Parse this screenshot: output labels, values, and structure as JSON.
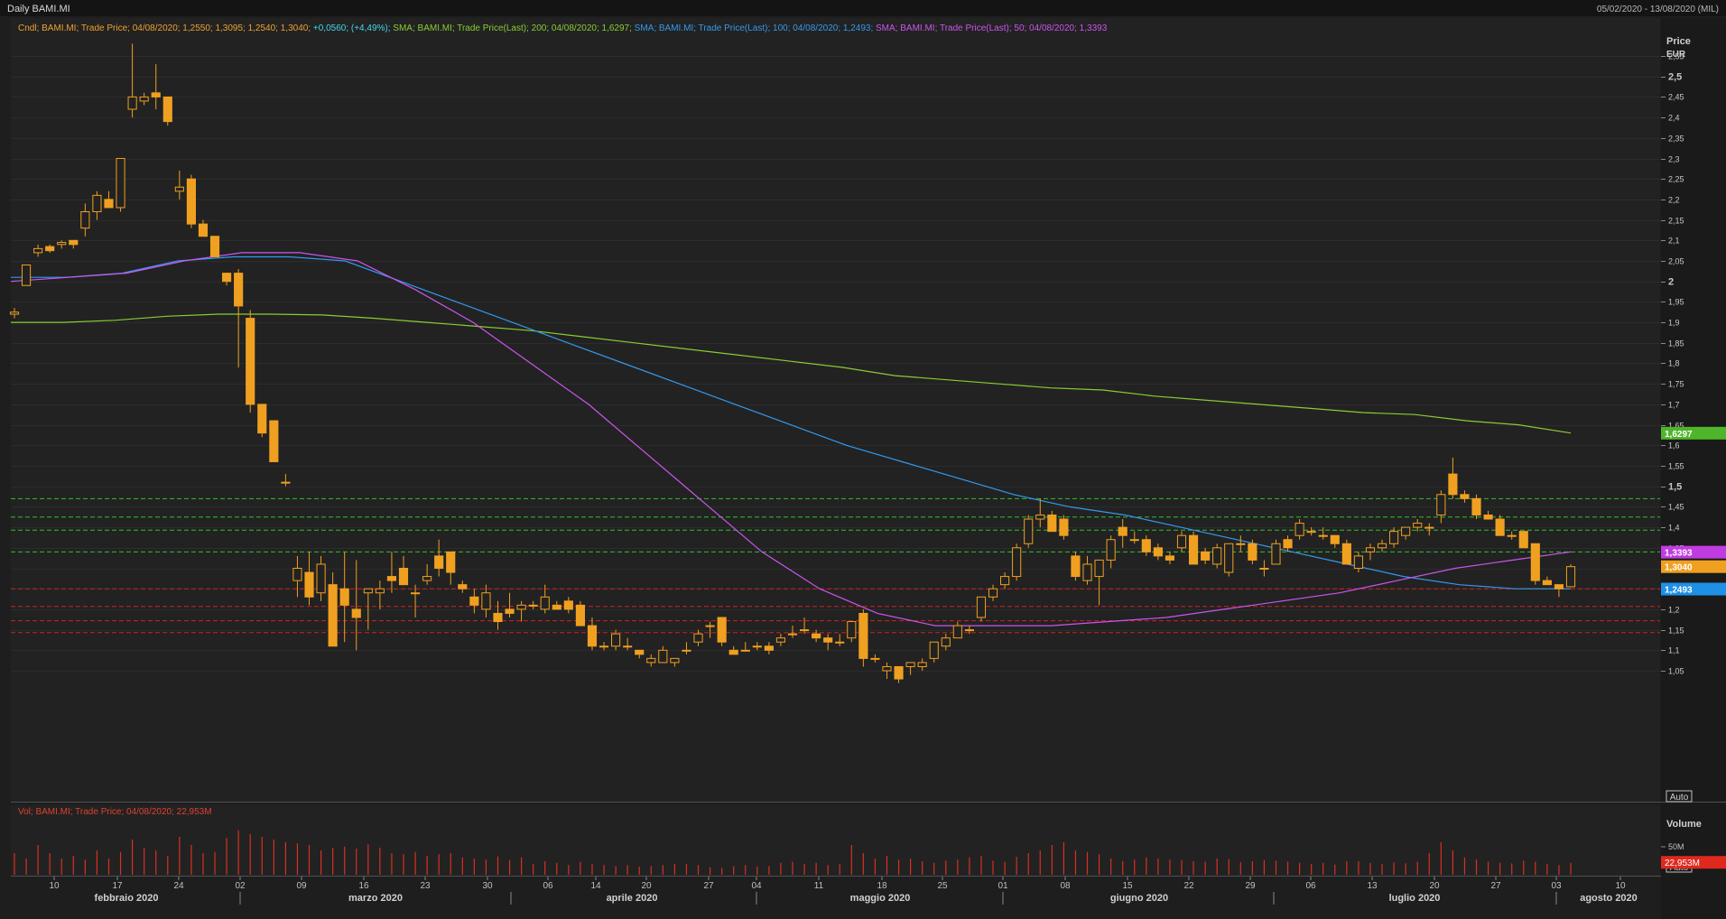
{
  "window": {
    "title": "Daily BAMI.MI",
    "date_range": "05/02/2020 - 13/08/2020 (MIL)"
  },
  "legend": {
    "cndl": {
      "text": "Cndl; BAMI.MI; Trade Price; 04/08/2020; 1,2550; 1,3095; 1,2540; 1,3040;",
      "color": "#f0a030"
    },
    "change": {
      "text": " +0,0560; (+4,49%);",
      "color": "#40d8e8"
    },
    "sma200": {
      "text": " SMA; BAMI.MI; Trade Price(Last);  200;  04/08/2020; 1,6297;",
      "color": "#88cc33"
    },
    "sma100": {
      "text": " SMA; BAMI.MI; Trade Price(Last);  100;  04/08/2020; 1,2493;",
      "color": "#3399ee"
    },
    "sma50": {
      "text": " SMA; BAMI.MI; Trade Price(Last);  50;  04/08/2020; 1,3393",
      "color": "#cc55ee"
    }
  },
  "volume_legend": {
    "text": "Vol; BAMI.MI; Trade Price; 04/08/2020; 22,953M",
    "color": "#e04030"
  },
  "price_axis": {
    "title": "Price",
    "unit": "EUR",
    "ticks": [
      "2,55",
      "2,5",
      "2,45",
      "2,4",
      "2,35",
      "2,3",
      "2,25",
      "2,2",
      "2,15",
      "2,1",
      "2,05",
      "2",
      "1,95",
      "1,9",
      "1,85",
      "1,8",
      "1,75",
      "1,7",
      "1,65",
      "1,6",
      "1,55",
      "1,5",
      "1,45",
      "1,4",
      "1,35",
      "1,3",
      "1,25",
      "1,2",
      "1,15",
      "1,1",
      "1,05"
    ],
    "bold_ticks": [
      "2,5",
      "2",
      "1,5"
    ],
    "auto_label": "Auto"
  },
  "volume_axis": {
    "title": "Volume",
    "tick": "50M",
    "auto_label": "Auto"
  },
  "price_tags": [
    {
      "label": "1,6297",
      "value": 1.6297,
      "color": "#4fb52a"
    },
    {
      "label": "1,3393",
      "value": 1.3393,
      "color": "#c03ce0"
    },
    {
      "label": "1,3040",
      "value": 1.304,
      "color": "#f0a020"
    },
    {
      "label": "1,2493",
      "value": 1.2493,
      "color": "#1e90e6"
    }
  ],
  "volume_tag": {
    "label": "22,953M",
    "value": 22.953,
    "color": "#e0281e"
  },
  "x_axis": {
    "day_labels": [
      "10",
      "17",
      "24",
      "02",
      "09",
      "16",
      "23",
      "30",
      "06",
      "14",
      "20",
      "27",
      "04",
      "11",
      "18",
      "25",
      "01",
      "08",
      "15",
      "22",
      "29",
      "06",
      "13",
      "20",
      "27",
      "03",
      "10"
    ],
    "month_labels": [
      "febbraio 2020",
      "marzo 2020",
      "aprile 2020",
      "maggio 2020",
      "giugno 2020",
      "luglio 2020",
      "agosto 2020"
    ]
  },
  "colors": {
    "background": "#1e1e1e",
    "grid": "#2c2c2c",
    "candle_up": "#f0a020",
    "support_green": "#2ec02e",
    "support_red": "#d02020",
    "volume_bar": "#d83020"
  },
  "chart_data": {
    "type": "candlestick",
    "symbol": "BAMI.MI",
    "ylim": [
      1.02,
      2.58
    ],
    "support_lines_green": [
      1.47,
      1.425,
      1.393,
      1.34
    ],
    "support_lines_red": [
      1.25,
      1.207,
      1.172,
      1.143
    ],
    "candles": [
      [
        1.92,
        1.935,
        1.91,
        1.925
      ],
      [
        1.99,
        2.04,
        1.99,
        2.04
      ],
      [
        2.07,
        2.09,
        2.06,
        2.08
      ],
      [
        2.085,
        2.09,
        2.07,
        2.075
      ],
      [
        2.09,
        2.1,
        2.08,
        2.095
      ],
      [
        2.1,
        2.1,
        2.08,
        2.09
      ],
      [
        2.13,
        2.19,
        2.11,
        2.17
      ],
      [
        2.17,
        2.22,
        2.15,
        2.21
      ],
      [
        2.2,
        2.22,
        2.18,
        2.18
      ],
      [
        2.18,
        2.3,
        2.17,
        2.3
      ],
      [
        2.42,
        2.58,
        2.4,
        2.45
      ],
      [
        2.44,
        2.46,
        2.43,
        2.45
      ],
      [
        2.46,
        2.53,
        2.42,
        2.45
      ],
      [
        2.45,
        2.45,
        2.38,
        2.39
      ],
      [
        2.22,
        2.27,
        2.2,
        2.23
      ],
      [
        2.25,
        2.26,
        2.13,
        2.14
      ],
      [
        2.14,
        2.15,
        2.11,
        2.11
      ],
      [
        2.11,
        2.11,
        2.07,
        2.06
      ],
      [
        2.02,
        2.02,
        1.99,
        2.0
      ],
      [
        2.02,
        2.03,
        1.79,
        1.94
      ],
      [
        1.91,
        1.93,
        1.68,
        1.7
      ],
      [
        1.7,
        1.7,
        1.62,
        1.63
      ],
      [
        1.66,
        1.66,
        1.56,
        1.56
      ],
      [
        1.51,
        1.53,
        1.5,
        1.51
      ],
      [
        1.27,
        1.33,
        1.23,
        1.3
      ],
      [
        1.29,
        1.34,
        1.21,
        1.23
      ],
      [
        1.24,
        1.33,
        1.22,
        1.31
      ],
      [
        1.26,
        1.29,
        1.11,
        1.11
      ],
      [
        1.25,
        1.34,
        1.12,
        1.21
      ],
      [
        1.2,
        1.32,
        1.1,
        1.18
      ],
      [
        1.24,
        1.25,
        1.15,
        1.25
      ],
      [
        1.24,
        1.27,
        1.2,
        1.25
      ],
      [
        1.28,
        1.34,
        1.24,
        1.27
      ],
      [
        1.3,
        1.33,
        1.26,
        1.26
      ],
      [
        1.24,
        1.26,
        1.18,
        1.24
      ],
      [
        1.27,
        1.31,
        1.26,
        1.28
      ],
      [
        1.33,
        1.37,
        1.28,
        1.3
      ],
      [
        1.34,
        1.34,
        1.26,
        1.29
      ],
      [
        1.26,
        1.27,
        1.24,
        1.25
      ],
      [
        1.23,
        1.25,
        1.19,
        1.21
      ],
      [
        1.2,
        1.26,
        1.18,
        1.24
      ],
      [
        1.19,
        1.22,
        1.15,
        1.17
      ],
      [
        1.2,
        1.24,
        1.18,
        1.19
      ],
      [
        1.2,
        1.22,
        1.17,
        1.21
      ],
      [
        1.21,
        1.22,
        1.2,
        1.21
      ],
      [
        1.2,
        1.26,
        1.19,
        1.23
      ],
      [
        1.21,
        1.22,
        1.2,
        1.2
      ],
      [
        1.22,
        1.23,
        1.19,
        1.2
      ],
      [
        1.21,
        1.22,
        1.16,
        1.16
      ],
      [
        1.16,
        1.18,
        1.1,
        1.11
      ],
      [
        1.11,
        1.12,
        1.1,
        1.11
      ],
      [
        1.11,
        1.15,
        1.1,
        1.14
      ],
      [
        1.11,
        1.13,
        1.1,
        1.11
      ],
      [
        1.1,
        1.1,
        1.08,
        1.09
      ],
      [
        1.07,
        1.09,
        1.06,
        1.08
      ],
      [
        1.07,
        1.11,
        1.07,
        1.1
      ],
      [
        1.07,
        1.08,
        1.06,
        1.08
      ],
      [
        1.1,
        1.12,
        1.09,
        1.1
      ],
      [
        1.12,
        1.15,
        1.11,
        1.14
      ],
      [
        1.16,
        1.17,
        1.13,
        1.16
      ],
      [
        1.18,
        1.18,
        1.11,
        1.12
      ],
      [
        1.1,
        1.11,
        1.09,
        1.09
      ],
      [
        1.1,
        1.12,
        1.1,
        1.1
      ],
      [
        1.11,
        1.12,
        1.1,
        1.11
      ],
      [
        1.11,
        1.12,
        1.09,
        1.1
      ],
      [
        1.12,
        1.14,
        1.11,
        1.13
      ],
      [
        1.14,
        1.16,
        1.13,
        1.14
      ],
      [
        1.15,
        1.18,
        1.14,
        1.15
      ],
      [
        1.14,
        1.15,
        1.12,
        1.13
      ],
      [
        1.13,
        1.14,
        1.1,
        1.12
      ],
      [
        1.12,
        1.14,
        1.11,
        1.12
      ],
      [
        1.13,
        1.17,
        1.12,
        1.17
      ],
      [
        1.19,
        1.2,
        1.06,
        1.08
      ],
      [
        1.08,
        1.09,
        1.07,
        1.08
      ],
      [
        1.05,
        1.07,
        1.03,
        1.06
      ],
      [
        1.06,
        1.06,
        1.02,
        1.03
      ],
      [
        1.06,
        1.07,
        1.04,
        1.07
      ],
      [
        1.06,
        1.08,
        1.05,
        1.07
      ],
      [
        1.08,
        1.12,
        1.07,
        1.12
      ],
      [
        1.11,
        1.14,
        1.1,
        1.13
      ],
      [
        1.13,
        1.17,
        1.13,
        1.16
      ],
      [
        1.15,
        1.16,
        1.14,
        1.15
      ],
      [
        1.18,
        1.23,
        1.17,
        1.23
      ],
      [
        1.23,
        1.26,
        1.22,
        1.25
      ],
      [
        1.26,
        1.29,
        1.25,
        1.28
      ],
      [
        1.28,
        1.36,
        1.27,
        1.35
      ],
      [
        1.36,
        1.43,
        1.35,
        1.42
      ],
      [
        1.42,
        1.47,
        1.4,
        1.43
      ],
      [
        1.43,
        1.44,
        1.39,
        1.39
      ],
      [
        1.42,
        1.43,
        1.37,
        1.38
      ],
      [
        1.33,
        1.34,
        1.27,
        1.28
      ],
      [
        1.27,
        1.33,
        1.26,
        1.31
      ],
      [
        1.28,
        1.32,
        1.21,
        1.32
      ],
      [
        1.32,
        1.38,
        1.3,
        1.37
      ],
      [
        1.4,
        1.42,
        1.35,
        1.38
      ],
      [
        1.37,
        1.39,
        1.36,
        1.37
      ],
      [
        1.37,
        1.38,
        1.33,
        1.34
      ],
      [
        1.35,
        1.36,
        1.32,
        1.33
      ],
      [
        1.33,
        1.34,
        1.31,
        1.32
      ],
      [
        1.35,
        1.39,
        1.34,
        1.38
      ],
      [
        1.38,
        1.39,
        1.31,
        1.31
      ],
      [
        1.34,
        1.35,
        1.31,
        1.32
      ],
      [
        1.31,
        1.36,
        1.3,
        1.35
      ],
      [
        1.29,
        1.36,
        1.28,
        1.36
      ],
      [
        1.36,
        1.38,
        1.34,
        1.36
      ],
      [
        1.36,
        1.37,
        1.31,
        1.32
      ],
      [
        1.3,
        1.32,
        1.28,
        1.3
      ],
      [
        1.31,
        1.37,
        1.31,
        1.36
      ],
      [
        1.37,
        1.38,
        1.34,
        1.35
      ],
      [
        1.38,
        1.42,
        1.37,
        1.41
      ],
      [
        1.39,
        1.4,
        1.38,
        1.39
      ],
      [
        1.38,
        1.4,
        1.37,
        1.38
      ],
      [
        1.38,
        1.38,
        1.35,
        1.36
      ],
      [
        1.36,
        1.37,
        1.31,
        1.31
      ],
      [
        1.3,
        1.34,
        1.29,
        1.33
      ],
      [
        1.34,
        1.36,
        1.32,
        1.35
      ],
      [
        1.35,
        1.37,
        1.34,
        1.36
      ],
      [
        1.36,
        1.4,
        1.35,
        1.39
      ],
      [
        1.38,
        1.4,
        1.37,
        1.4
      ],
      [
        1.4,
        1.42,
        1.39,
        1.41
      ],
      [
        1.4,
        1.41,
        1.38,
        1.4
      ],
      [
        1.43,
        1.49,
        1.41,
        1.48
      ],
      [
        1.53,
        1.57,
        1.47,
        1.48
      ],
      [
        1.48,
        1.49,
        1.46,
        1.47
      ],
      [
        1.47,
        1.48,
        1.42,
        1.43
      ],
      [
        1.43,
        1.44,
        1.42,
        1.42
      ],
      [
        1.42,
        1.43,
        1.38,
        1.38
      ],
      [
        1.38,
        1.39,
        1.37,
        1.38
      ],
      [
        1.39,
        1.39,
        1.35,
        1.35
      ],
      [
        1.36,
        1.36,
        1.26,
        1.27
      ],
      [
        1.27,
        1.28,
        1.26,
        1.26
      ],
      [
        1.26,
        1.26,
        1.23,
        1.25
      ],
      [
        1.255,
        1.3095,
        1.254,
        1.304
      ]
    ],
    "sma200": [
      1.9,
      1.9,
      1.905,
      1.915,
      1.92,
      1.92,
      1.918,
      1.91,
      1.9,
      1.89,
      1.88,
      1.865,
      1.85,
      1.835,
      1.82,
      1.805,
      1.79,
      1.77,
      1.76,
      1.75,
      1.74,
      1.735,
      1.72,
      1.71,
      1.7,
      1.69,
      1.68,
      1.675,
      1.66,
      1.65,
      1.63
    ],
    "sma100": [
      2.01,
      2.01,
      2.02,
      2.05,
      2.06,
      2.06,
      2.05,
      2.0,
      1.95,
      1.9,
      1.85,
      1.8,
      1.75,
      1.7,
      1.65,
      1.6,
      1.56,
      1.52,
      1.48,
      1.45,
      1.43,
      1.4,
      1.37,
      1.34,
      1.31,
      1.28,
      1.26,
      1.25,
      1.25
    ],
    "sma50": [
      2.0,
      2.01,
      2.02,
      2.05,
      2.07,
      2.07,
      2.05,
      1.98,
      1.9,
      1.8,
      1.7,
      1.58,
      1.46,
      1.34,
      1.25,
      1.19,
      1.16,
      1.16,
      1.16,
      1.17,
      1.18,
      1.2,
      1.22,
      1.24,
      1.27,
      1.3,
      1.32,
      1.34
    ],
    "volumes": [
      40,
      30,
      55,
      40,
      30,
      35,
      28,
      45,
      30,
      42,
      65,
      50,
      45,
      35,
      70,
      55,
      40,
      42,
      68,
      82,
      75,
      70,
      65,
      60,
      58,
      55,
      45,
      50,
      52,
      48,
      56,
      50,
      40,
      38,
      42,
      35,
      38,
      40,
      32,
      30,
      28,
      34,
      27,
      32,
      20,
      25,
      22,
      18,
      24,
      20,
      18,
      16,
      18,
      15,
      16,
      18,
      20,
      20,
      18,
      14,
      13,
      16,
      18,
      15,
      16,
      22,
      24,
      20,
      22,
      18,
      20,
      55,
      40,
      30,
      35,
      28,
      30,
      25,
      22,
      26,
      28,
      32,
      35,
      26,
      24,
      33,
      40,
      45,
      55,
      60,
      45,
      42,
      38,
      30,
      25,
      28,
      32,
      30,
      28,
      27,
      25,
      24,
      30,
      29,
      23,
      25,
      27,
      26,
      24,
      22,
      20,
      22,
      19,
      25,
      25,
      22,
      20,
      23,
      21,
      24,
      40,
      60,
      45,
      32,
      28,
      24,
      22,
      21,
      26,
      24,
      20,
      18,
      22
    ]
  }
}
